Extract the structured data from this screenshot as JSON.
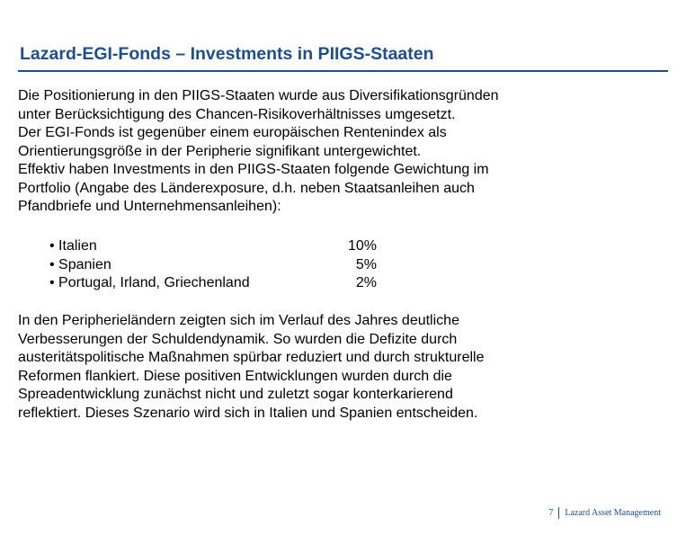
{
  "slide": {
    "title": "Lazard-EGI-Fonds – Investments in PIIGS-Staaten",
    "intro_lines": [
      "Die Positionierung in den PIIGS-Staaten wurde aus Diversifikationsgründen",
      "unter Berücksichtigung des Chancen-Risikoverhältnisses umgesetzt.",
      "Der EGI-Fonds ist gegenüber einem europäischen Rentenindex als",
      "Orientierungsgröße in der Peripherie signifikant untergewichtet.",
      "Effektiv haben Investments in den PIIGS-Staaten folgende Gewichtung im",
      "Portfolio (Angabe des Länderexposure, d.h. neben Staatsanleihen auch",
      "Pfandbriefe und Unternehmensanleihen):"
    ],
    "weights": [
      {
        "label": "• Italien",
        "value": "10%"
      },
      {
        "label": "• Spanien",
        "value": "5%"
      },
      {
        "label": "• Portugal, Irland, Griechenland",
        "value": "2%"
      }
    ],
    "outro_lines": [
      "In den Peripherieländern zeigten sich im Verlauf des Jahres deutliche",
      "Verbesserungen der Schuldendynamik. So wurden die Defizite durch",
      "austeritätspolitische Maßnahmen spürbar reduziert und durch strukturelle",
      "Reformen flankiert. Diese positiven Entwicklungen wurden durch die",
      "Spreadentwicklung zunächst nicht und zuletzt sogar konterkarierend",
      "reflektiert. Dieses Szenario wird sich in Italien und Spanien entscheiden."
    ]
  },
  "footer": {
    "page_number": "7",
    "brand": "Lazard Asset Management"
  },
  "colors": {
    "accent": "#1f4e8c",
    "text": "#000000"
  }
}
